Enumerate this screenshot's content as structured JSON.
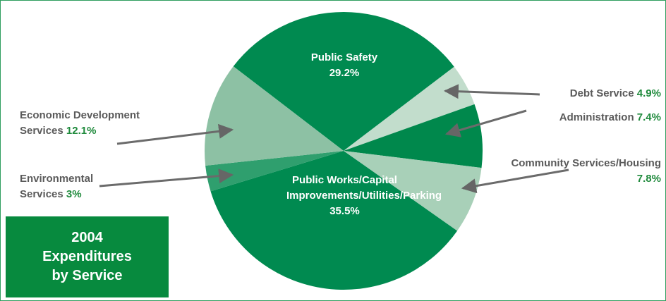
{
  "chart_data": {
    "type": "pie",
    "title": "2004 Expenditures by Service",
    "categories": [
      "Public Safety",
      "Debt Service",
      "Administration",
      "Community Services/Housing",
      "Public Works/Capital Improvements/Utilities/Parking",
      "Environmental Services",
      "Economic Development Services"
    ],
    "values": [
      29.2,
      4.9,
      7.4,
      7.8,
      35.5,
      3,
      12.1
    ],
    "value_labels": [
      "29.2%",
      "4.9%",
      "7.4%",
      "7.8%",
      "35.5%",
      "3%",
      "12.1%"
    ],
    "colors": [
      "#008a50",
      "#c2ddcc",
      "#00884c",
      "#a8d0b8",
      "#008a50",
      "#2f9f6e",
      "#8dc1a4"
    ]
  }
}
